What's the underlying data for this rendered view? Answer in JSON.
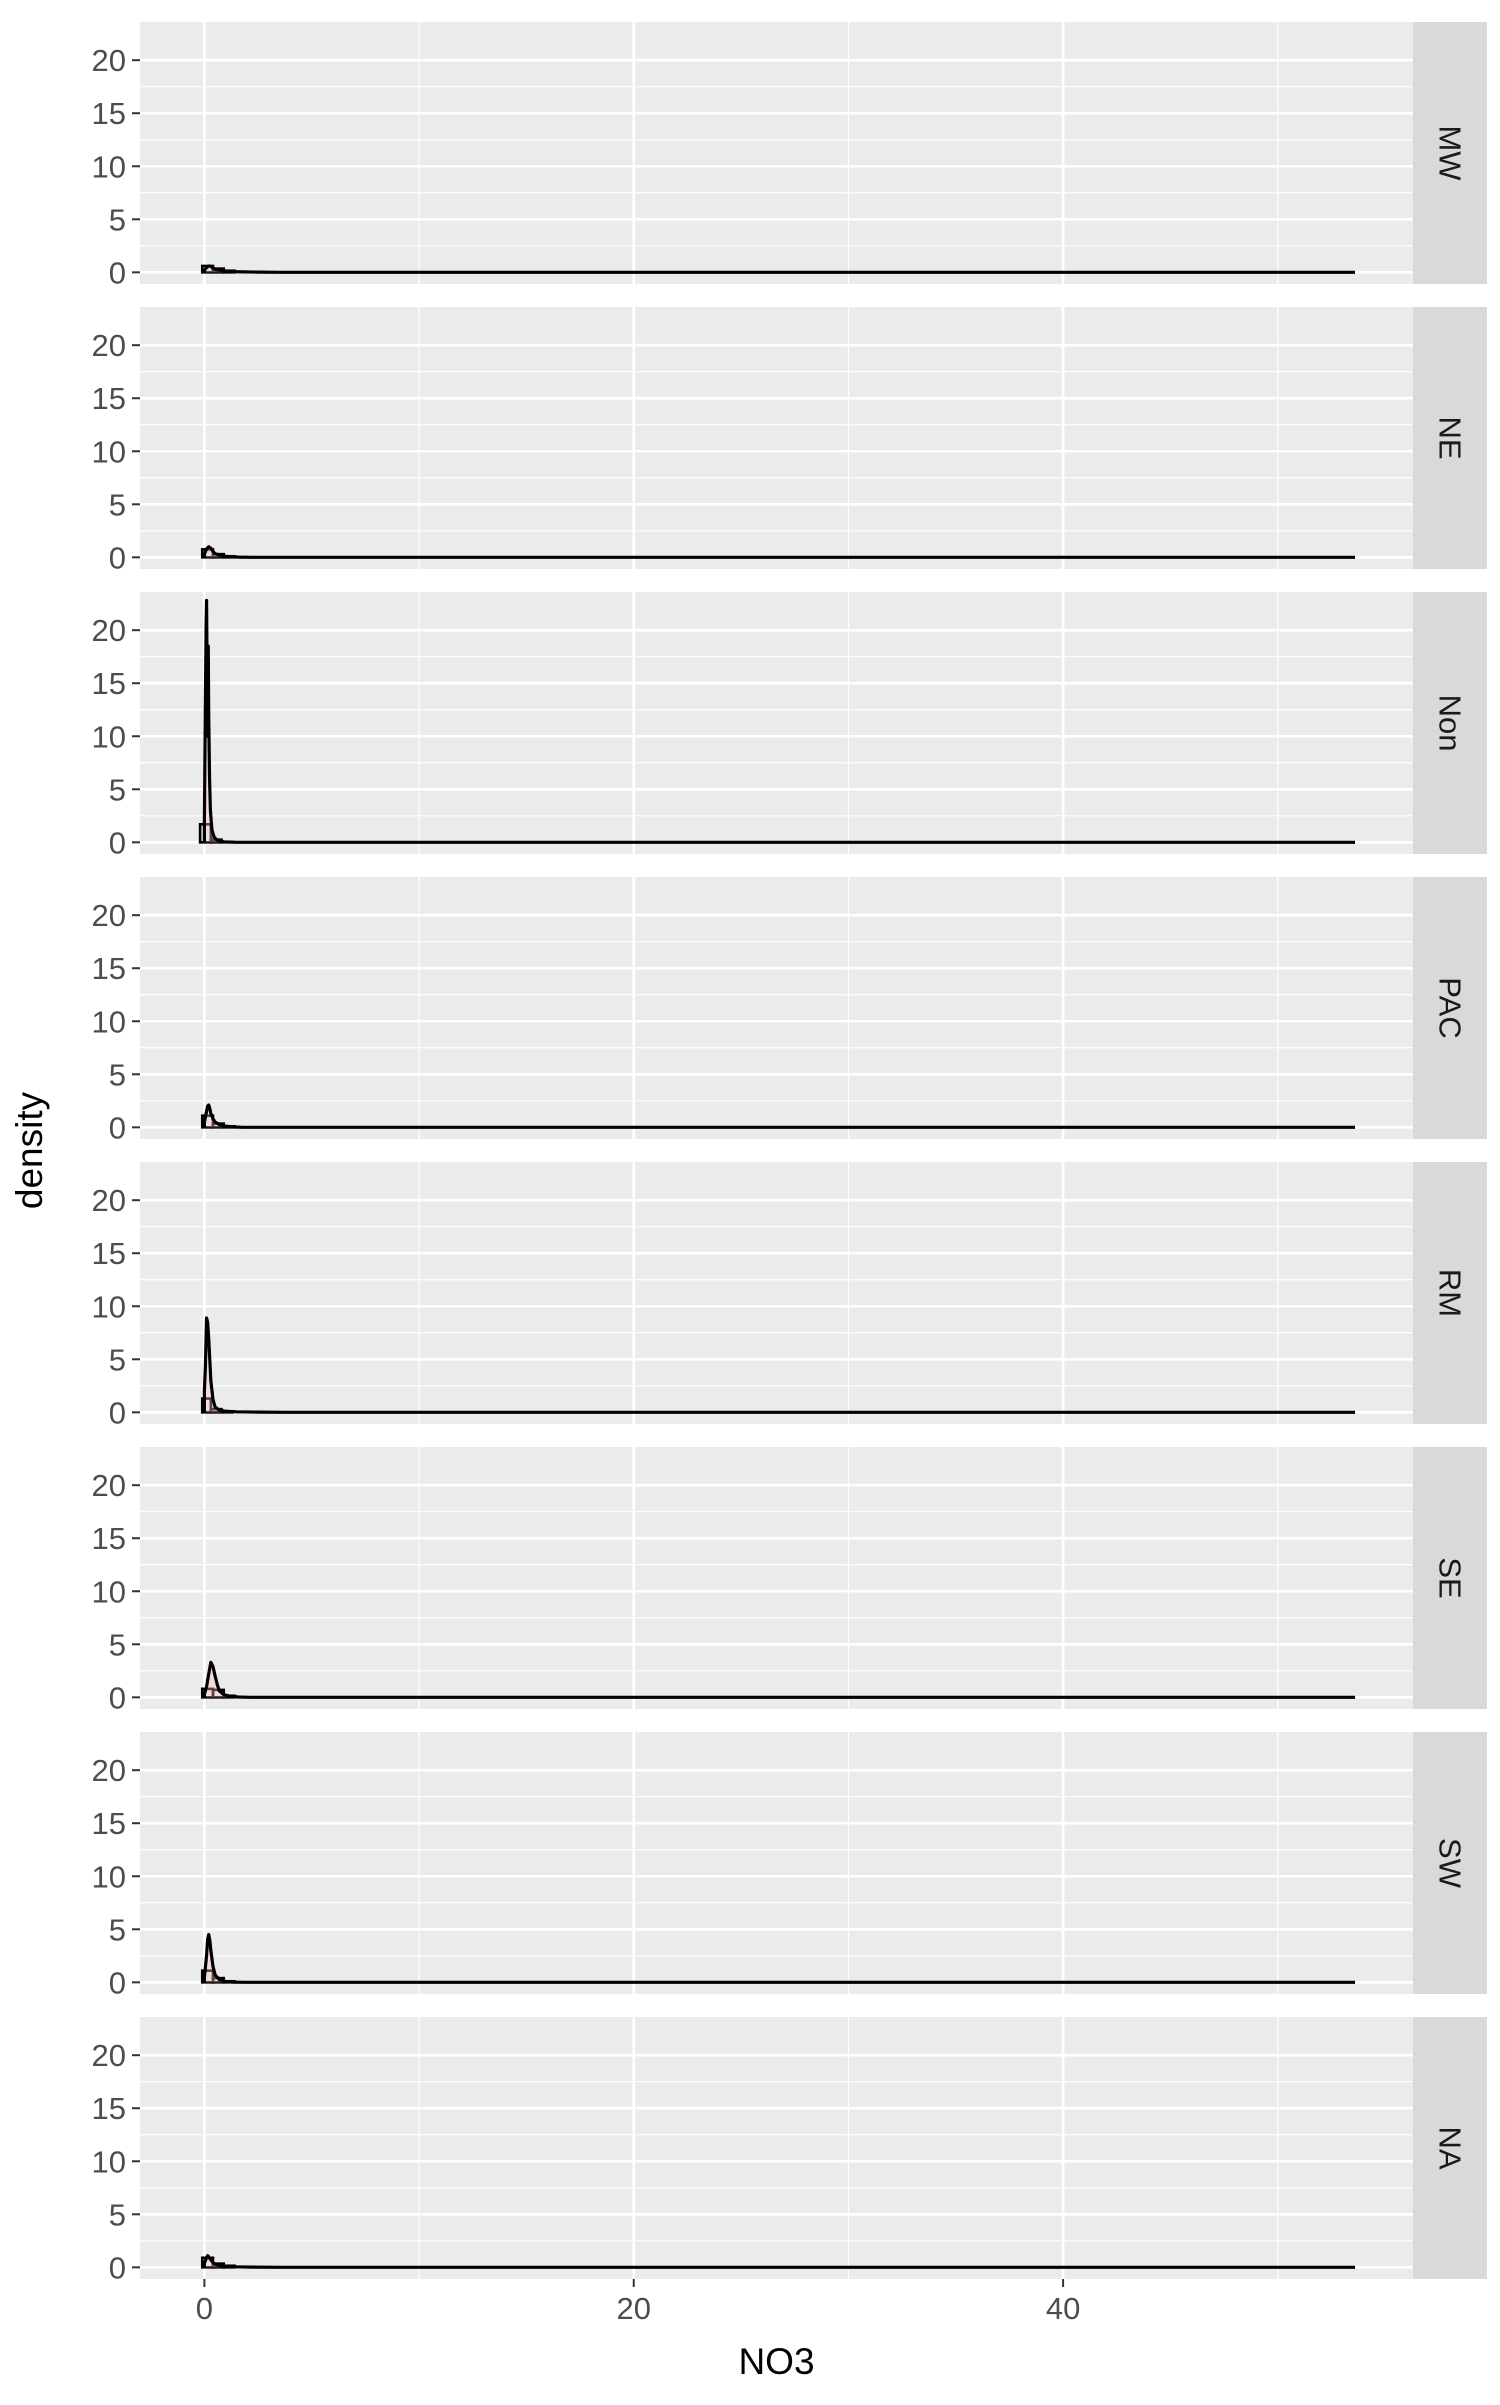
{
  "chart_data": {
    "type": "area",
    "description_kind": "faceted density plot with histogram outline",
    "xlabel": "NO3",
    "ylabel": "density",
    "xlim": [
      -3,
      56.3
    ],
    "ylim": [
      -1.1,
      23.6
    ],
    "x_ticks": [
      0,
      20,
      40
    ],
    "x_tick_labels": [
      "0",
      "20",
      "40"
    ],
    "y_ticks": [
      0,
      5,
      10,
      15,
      20
    ],
    "y_tick_labels": [
      "0",
      "5",
      "10",
      "15",
      "20"
    ],
    "grid": true,
    "facet_layout": "rows",
    "x_extent": [
      0,
      53.6
    ],
    "panels": [
      {
        "label": "MW",
        "hist": [
          {
            "x0": -0.1,
            "x1": 0.4,
            "y": 0.6
          },
          {
            "x0": 0.4,
            "x1": 0.9,
            "y": 0.35
          },
          {
            "x0": 0.9,
            "x1": 1.4,
            "y": 0.15
          }
        ],
        "density_x": [
          0,
          0.1,
          0.2,
          0.3,
          0.4,
          0.5,
          0.6,
          0.8,
          1.0,
          1.3,
          1.8,
          2.5,
          3.5
        ],
        "density_y": [
          0.2,
          0.45,
          0.6,
          0.55,
          0.4,
          0.3,
          0.25,
          0.18,
          0.12,
          0.07,
          0.04,
          0.02,
          0
        ]
      },
      {
        "label": "NE",
        "hist": [
          {
            "x0": -0.1,
            "x1": 0.4,
            "y": 0.75
          },
          {
            "x0": 0.4,
            "x1": 0.9,
            "y": 0.3
          },
          {
            "x0": 0.9,
            "x1": 1.4,
            "y": 0.1
          }
        ],
        "density_x": [
          0,
          0.1,
          0.2,
          0.3,
          0.4,
          0.5,
          0.7,
          0.9,
          1.2,
          1.6,
          2.2
        ],
        "density_y": [
          0.3,
          0.8,
          1.0,
          0.85,
          0.55,
          0.35,
          0.2,
          0.12,
          0.06,
          0.02,
          0
        ]
      },
      {
        "label": "Non",
        "hist": [
          {
            "x0": -0.2,
            "x1": 0.3,
            "y": 1.7
          },
          {
            "x0": 0.3,
            "x1": 0.8,
            "y": 0.25
          },
          {
            "x0": 0.8,
            "x1": 1.3,
            "y": 0.05
          }
        ],
        "density_x": [
          0,
          0.04,
          0.08,
          0.1,
          0.12,
          0.14,
          0.16,
          0.18,
          0.2,
          0.24,
          0.28,
          0.35,
          0.45,
          0.6,
          0.9,
          1.5
        ],
        "density_y": [
          2.0,
          12.0,
          20.5,
          22.8,
          18.0,
          10.0,
          14.0,
          18.5,
          12.0,
          6.0,
          3.0,
          1.2,
          0.5,
          0.2,
          0.05,
          0
        ]
      },
      {
        "label": "PAC",
        "hist": [
          {
            "x0": -0.1,
            "x1": 0.4,
            "y": 1.1
          },
          {
            "x0": 0.4,
            "x1": 0.9,
            "y": 0.35
          },
          {
            "x0": 0.9,
            "x1": 1.4,
            "y": 0.1
          }
        ],
        "density_x": [
          0,
          0.1,
          0.15,
          0.2,
          0.25,
          0.3,
          0.4,
          0.5,
          0.7,
          1.0,
          1.4,
          1.8
        ],
        "density_y": [
          0.5,
          1.5,
          2.0,
          2.1,
          1.8,
          1.3,
          0.8,
          0.5,
          0.25,
          0.1,
          0.03,
          0
        ]
      },
      {
        "label": "RM",
        "hist": [
          {
            "x0": -0.1,
            "x1": 0.3,
            "y": 1.3
          },
          {
            "x0": 0.3,
            "x1": 0.8,
            "y": 0.3
          },
          {
            "x0": 0.8,
            "x1": 1.3,
            "y": 0.1
          }
        ],
        "density_x": [
          0,
          0.05,
          0.1,
          0.15,
          0.2,
          0.25,
          0.3,
          0.4,
          0.5,
          0.7,
          1.0,
          1.5,
          2.5,
          3.8
        ],
        "density_y": [
          2.0,
          4.5,
          8.9,
          8.5,
          7.0,
          5.0,
          3.0,
          1.2,
          0.5,
          0.2,
          0.1,
          0.05,
          0.02,
          0
        ]
      },
      {
        "label": "SE",
        "hist": [
          {
            "x0": -0.1,
            "x1": 0.4,
            "y": 0.8
          },
          {
            "x0": 0.4,
            "x1": 0.9,
            "y": 0.7
          },
          {
            "x0": 0.9,
            "x1": 1.4,
            "y": 0.15
          }
        ],
        "density_x": [
          0,
          0.1,
          0.2,
          0.3,
          0.4,
          0.5,
          0.6,
          0.7,
          0.9,
          1.2,
          1.6,
          2.1
        ],
        "density_y": [
          0.3,
          1.0,
          2.2,
          3.3,
          2.9,
          2.0,
          1.2,
          0.6,
          0.25,
          0.1,
          0.03,
          0
        ]
      },
      {
        "label": "SW",
        "hist": [
          {
            "x0": -0.1,
            "x1": 0.4,
            "y": 1.1
          },
          {
            "x0": 0.4,
            "x1": 0.9,
            "y": 0.4
          },
          {
            "x0": 0.9,
            "x1": 1.4,
            "y": 0.1
          }
        ],
        "density_x": [
          0,
          0.1,
          0.15,
          0.2,
          0.25,
          0.3,
          0.4,
          0.5,
          0.7,
          1.0,
          1.4,
          1.8
        ],
        "density_y": [
          0.5,
          2.5,
          4.0,
          4.5,
          4.0,
          3.0,
          1.5,
          0.7,
          0.25,
          0.08,
          0.02,
          0
        ]
      },
      {
        "label": "NA",
        "hist": [
          {
            "x0": -0.1,
            "x1": 0.4,
            "y": 0.9
          },
          {
            "x0": 0.4,
            "x1": 0.9,
            "y": 0.35
          },
          {
            "x0": 0.9,
            "x1": 1.4,
            "y": 0.15
          }
        ],
        "density_x": [
          0,
          0.1,
          0.15,
          0.2,
          0.3,
          0.4,
          0.5,
          0.7,
          1.0,
          1.5,
          2.2,
          3.5
        ],
        "density_y": [
          0.4,
          0.9,
          1.1,
          1.0,
          0.7,
          0.45,
          0.3,
          0.18,
          0.1,
          0.05,
          0.02,
          0
        ]
      }
    ],
    "colors": {
      "panel_bg": "#ebebeb",
      "grid_major": "#ffffff",
      "strip_bg": "#d9d9d9",
      "axis_text": "#4d4d4d",
      "line": "#000000",
      "density_fill": "#ffc0c0"
    }
  }
}
